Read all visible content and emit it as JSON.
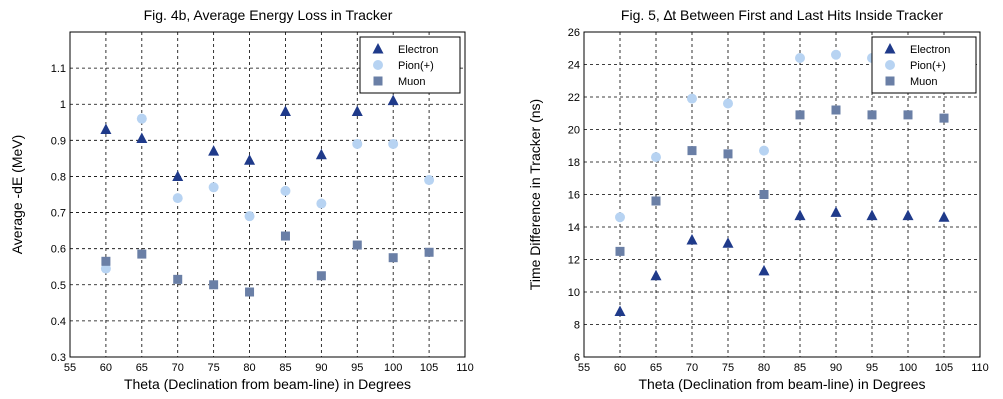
{
  "colors": {
    "electron": "#1f3a8a",
    "pion": "#b7d3f2",
    "muon": "#6a7fa6"
  },
  "chart_data": [
    {
      "type": "scatter",
      "title": "Fig. 4b, Average Energy Loss in Tracker",
      "xlabel": "Theta (Declination from beam-line) in Degrees",
      "ylabel": "Average -dE (MeV)",
      "xlim": [
        55,
        110
      ],
      "ylim": [
        0.3,
        1.2
      ],
      "xticks": [
        "55",
        "60",
        "65",
        "70",
        "75",
        "80",
        "85",
        "90",
        "95",
        "100",
        "105",
        "110"
      ],
      "yticks": [
        "0.3",
        "0.4",
        "0.5",
        "0.6",
        "0.7",
        "0.8",
        "0.9",
        "1",
        "1.1"
      ],
      "grid": true,
      "legend_position": "top-right",
      "series": [
        {
          "name": "Electron",
          "marker": "triangle",
          "color": "#1f3a8a",
          "x": [
            60,
            65,
            70,
            75,
            80,
            85,
            90,
            95,
            100
          ],
          "y": [
            0.93,
            0.905,
            0.8,
            0.87,
            0.845,
            0.98,
            0.86,
            0.98,
            1.01
          ]
        },
        {
          "name": "Pion(+)",
          "marker": "circle",
          "color": "#b7d3f2",
          "x": [
            60,
            65,
            70,
            75,
            80,
            85,
            90,
            95,
            100,
            105
          ],
          "y": [
            0.545,
            0.96,
            0.74,
            0.77,
            0.69,
            0.76,
            0.725,
            0.89,
            0.89,
            0.79
          ]
        },
        {
          "name": "Muon",
          "marker": "square",
          "color": "#6a7fa6",
          "x": [
            60,
            65,
            70,
            75,
            80,
            85,
            90,
            95,
            100,
            105
          ],
          "y": [
            0.565,
            0.585,
            0.515,
            0.5,
            0.48,
            0.635,
            0.525,
            0.61,
            0.575,
            0.59
          ]
        }
      ]
    },
    {
      "type": "scatter",
      "title": "Fig. 5, ∆t Between First and Last Hits Inside Tracker",
      "xlabel": "Theta (Declination from beam-line) in Degrees",
      "ylabel": "Time Difference in Tracker (ns)",
      "xlim": [
        55,
        110
      ],
      "ylim": [
        6,
        26
      ],
      "xticks": [
        "55",
        "60",
        "65",
        "70",
        "75",
        "80",
        "85",
        "90",
        "95",
        "100",
        "105",
        "110"
      ],
      "yticks": [
        "6",
        "8",
        "10",
        "12",
        "14",
        "16",
        "18",
        "20",
        "22",
        "24",
        "26"
      ],
      "grid": true,
      "legend_position": "top-right",
      "series": [
        {
          "name": "Electron",
          "marker": "triangle",
          "color": "#1f3a8a",
          "x": [
            60,
            65,
            70,
            75,
            80,
            85,
            90,
            95,
            100,
            105
          ],
          "y": [
            8.8,
            11.0,
            13.2,
            13.0,
            11.3,
            14.7,
            14.9,
            14.7,
            14.7,
            14.6
          ]
        },
        {
          "name": "Pion(+)",
          "marker": "circle",
          "color": "#b7d3f2",
          "x": [
            60,
            65,
            70,
            75,
            80,
            85,
            90,
            95
          ],
          "y": [
            14.6,
            18.3,
            21.9,
            21.6,
            18.7,
            24.4,
            24.6,
            24.4
          ]
        },
        {
          "name": "Muon",
          "marker": "square",
          "color": "#6a7fa6",
          "x": [
            60,
            65,
            70,
            75,
            80,
            85,
            90,
            95,
            100,
            105
          ],
          "y": [
            12.5,
            15.6,
            18.7,
            18.5,
            16.0,
            20.9,
            21.2,
            20.9,
            20.9,
            20.7
          ]
        }
      ]
    }
  ]
}
